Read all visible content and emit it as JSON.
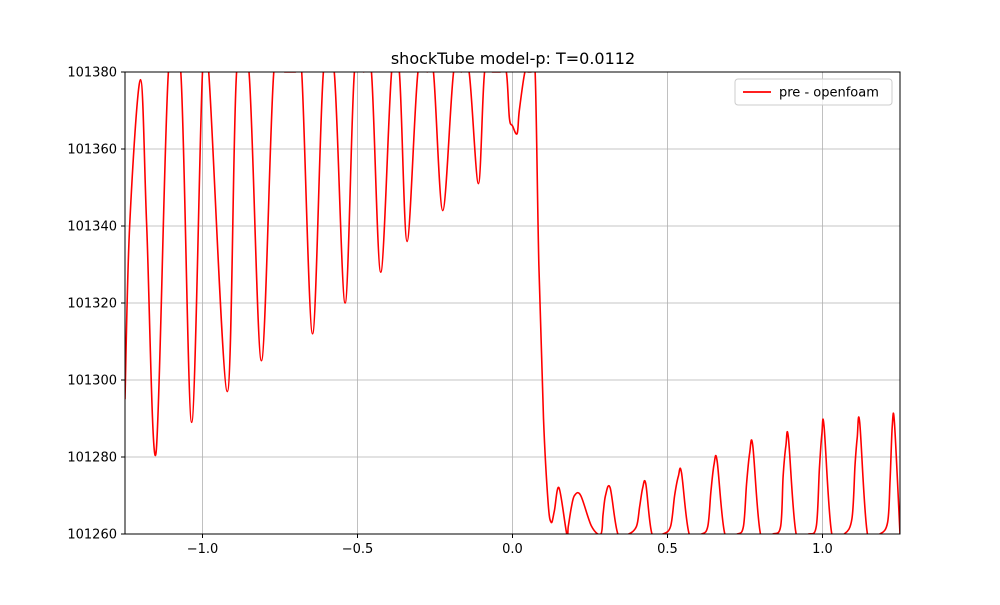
{
  "chart_data": {
    "type": "line",
    "title": "shockTube model-p: T=0.0112",
    "xlabel": "",
    "ylabel": "",
    "xlim": [
      -1.25,
      1.25
    ],
    "ylim": [
      101260,
      101380
    ],
    "xticks": [
      -1.0,
      -0.5,
      0.0,
      0.5,
      1.0
    ],
    "xtick_labels": [
      "−1.0",
      "−0.5",
      "0.0",
      "0.5",
      "1.0"
    ],
    "yticks": [
      101260,
      101280,
      101300,
      101320,
      101340,
      101360,
      101380
    ],
    "ytick_labels": [
      "101260",
      "101280",
      "101300",
      "101320",
      "101340",
      "101360",
      "101380"
    ],
    "grid": true,
    "legend_placement": "top-right",
    "series": [
      {
        "name": "pre - openfoam",
        "color": "#ff0000",
        "x": [
          -1.25,
          -1.235,
          -1.2,
          -1.18,
          -1.15,
          -1.11,
          -1.07,
          -1.035,
          -1.0,
          -0.98,
          -0.92,
          -0.89,
          -0.85,
          -0.81,
          -0.77,
          -0.735,
          -0.7,
          -0.68,
          -0.645,
          -0.61,
          -0.575,
          -0.54,
          -0.51,
          -0.48,
          -0.455,
          -0.425,
          -0.39,
          -0.365,
          -0.34,
          -0.305,
          -0.275,
          -0.255,
          -0.225,
          -0.19,
          -0.165,
          -0.14,
          -0.11,
          -0.09,
          -0.065,
          -0.04,
          -0.02,
          -0.01,
          0.0,
          0.015,
          0.022,
          0.04,
          0.05,
          0.06,
          0.073,
          0.085,
          0.1,
          0.115,
          0.125,
          0.135,
          0.15,
          0.175,
          0.18,
          0.19,
          0.2,
          0.22,
          0.255,
          0.285,
          0.292,
          0.3,
          0.315,
          0.34,
          0.375,
          0.4,
          0.41,
          0.42,
          0.43,
          0.45,
          0.485,
          0.51,
          0.523,
          0.535,
          0.545,
          0.57,
          0.61,
          0.63,
          0.64,
          0.65,
          0.66,
          0.685,
          0.725,
          0.745,
          0.755,
          0.765,
          0.775,
          0.8,
          0.84,
          0.865,
          0.873,
          0.882,
          0.89,
          0.915,
          0.955,
          0.98,
          0.99,
          0.998,
          1.005,
          1.03,
          1.07,
          1.095,
          1.105,
          1.112,
          1.12,
          1.145,
          1.185,
          1.21,
          1.218,
          1.225,
          1.232,
          1.25
        ],
        "values": [
          101295,
          101340,
          101378,
          101340,
          101281,
          101380,
          101380,
          101289,
          101380,
          101380,
          101297,
          101380,
          101380,
          101305,
          101380,
          101380,
          101380,
          101380,
          101312,
          101380,
          101380,
          101320,
          101380,
          101380,
          101380,
          101328,
          101380,
          101380,
          101336,
          101380,
          101380,
          101380,
          101344,
          101380,
          101380,
          101380,
          101351,
          101380,
          101380,
          101380,
          101380,
          101368,
          101366,
          101364,
          101370,
          101380,
          101380,
          101380,
          101380,
          101330,
          101290,
          101268,
          101263,
          101266,
          101272,
          101260,
          101262,
          101267,
          101270,
          101270,
          101262,
          101260,
          101265,
          101270,
          101272,
          101260,
          101260,
          101262,
          101267,
          101272,
          101273,
          101260,
          101260,
          101262,
          101270,
          101275,
          101276,
          101260,
          101260,
          101262,
          101271,
          101278,
          101279,
          101260,
          101260,
          101262,
          101273,
          101281,
          101283,
          101260,
          101260,
          101262,
          101275,
          101283,
          101285,
          101260,
          101260,
          101262,
          101277,
          101286,
          101288,
          101260,
          101260,
          101264,
          101278,
          101285,
          101289,
          101260,
          101260,
          101263,
          101274,
          101288,
          101289,
          101260
        ]
      }
    ]
  }
}
